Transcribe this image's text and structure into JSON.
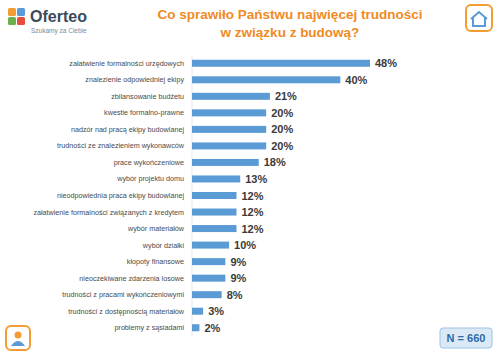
{
  "chart_data": {
    "type": "bar",
    "orientation": "horizontal",
    "title": "Co sprawiło Państwu najwięcej trudności\nw związku z budową?",
    "annotations": [
      "Oferteo",
      "Szukamy za Ciebie",
      "N = 660"
    ],
    "categories": [
      "załatwienie formalności urzędowych",
      "znalezienie odpowiedniej ekipy",
      "zbilansowanie budżetu",
      "kwestie formalno-prawne",
      "nadzór nad pracą ekipy budowlanej",
      "trudności ze znalezieniem wykonawców",
      "prace wykończeniowe",
      "wybór projektu domu",
      "nieodpowiednia praca ekipy budowlanej",
      "załatwienie formalności związanych z kredytem",
      "wybór materiałów",
      "wybór działki",
      "kłopoty finansowe",
      "nieoczekiwane zdarzenia losowe",
      "trudności z pracami wykończeniowymi",
      "trudności z dostępnością materiałów",
      "problemy z sąsiadami"
    ],
    "values": [
      48,
      40,
      21,
      20,
      20,
      20,
      18,
      13,
      12,
      12,
      12,
      10,
      9,
      9,
      8,
      3,
      2
    ],
    "value_labels": [
      "48%",
      "40%",
      "21%",
      "20%",
      "20%",
      "20%",
      "18%",
      "13%",
      "12%",
      "12%",
      "12%",
      "10%",
      "9%",
      "9%",
      "8%",
      "3%",
      "2%"
    ],
    "color": "#5b9bd5",
    "xlim": [
      0,
      48
    ],
    "data_labels": true,
    "tick_labels": "y",
    "grid": false
  }
}
